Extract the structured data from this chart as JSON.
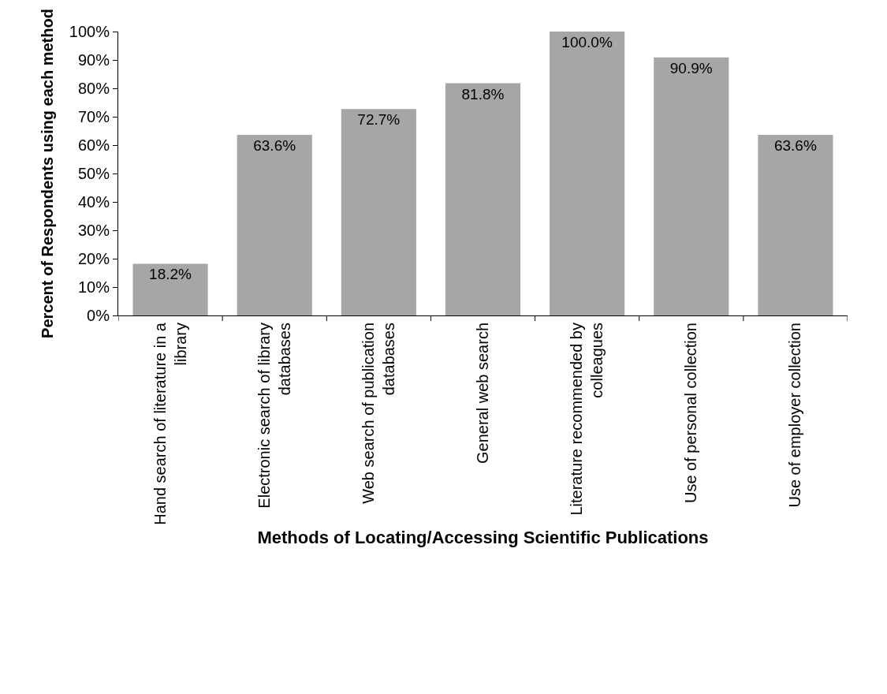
{
  "chart_data": {
    "type": "bar",
    "xlabel": "Methods of Locating/Accessing Scientific Publications",
    "ylabel": "Percent of Respondents using each method",
    "categories": [
      "Hand search of literature in a library",
      "Electronic search of library databases",
      "Web search of publication databases",
      "General web search",
      "Literature recommended by colleagues",
      "Use of personal collection",
      "Use of employer collection"
    ],
    "values": [
      18.2,
      63.6,
      72.7,
      81.8,
      100.0,
      90.9,
      63.6
    ],
    "value_labels": [
      "18.2%",
      "63.6%",
      "72.7%",
      "81.8%",
      "100.0%",
      "90.9%",
      "63.6%"
    ],
    "color": "#a6a6a6",
    "ylim": [
      0,
      100
    ],
    "yticks": [
      {
        "value": 0,
        "label": "0%"
      },
      {
        "value": 10,
        "label": "10%"
      },
      {
        "value": 20,
        "label": "20%"
      },
      {
        "value": 30,
        "label": "30%"
      },
      {
        "value": 40,
        "label": "40%"
      },
      {
        "value": 50,
        "label": "50%"
      },
      {
        "value": 60,
        "label": "60%"
      },
      {
        "value": 70,
        "label": "70%"
      },
      {
        "value": 80,
        "label": "80%"
      },
      {
        "value": 90,
        "label": "90%"
      },
      {
        "value": 100,
        "label": "100%"
      }
    ],
    "legend": false
  }
}
